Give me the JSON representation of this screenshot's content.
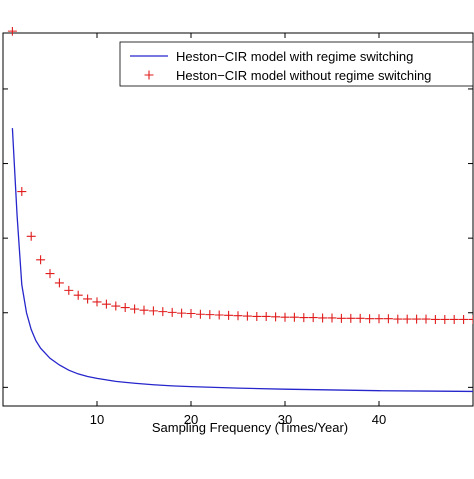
{
  "chart_data": {
    "type": "line",
    "xlabel": "Sampling Frequency (Times/Year)",
    "ylabel": "",
    "xlim": [
      0,
      50
    ],
    "ylim": [
      0,
      1
    ],
    "x_ticks": [
      10,
      20,
      30,
      40
    ],
    "x_tick_labels": [
      "10",
      "20",
      "30",
      "40"
    ],
    "legend_position": "top-right",
    "grid": false,
    "series": [
      {
        "name": "Heston−CIR model with regime switching",
        "style": "line",
        "color": "#2626cc",
        "x": [
          1,
          1.5,
          2,
          2.5,
          3,
          3.5,
          4,
          5,
          6,
          7,
          8,
          9,
          10,
          12,
          14,
          16,
          18,
          20,
          25,
          30,
          35,
          40,
          45,
          50
        ],
        "y": [
          0.745,
          0.51,
          0.325,
          0.25,
          0.205,
          0.175,
          0.155,
          0.128,
          0.11,
          0.096,
          0.086,
          0.079,
          0.074,
          0.066,
          0.061,
          0.057,
          0.054,
          0.052,
          0.048,
          0.045,
          0.043,
          0.041,
          0.04,
          0.039
        ]
      },
      {
        "name": "Heston−CIR model without regime switching",
        "style": "markers",
        "marker": "+",
        "color": "#e01c1c",
        "x": [
          1,
          2,
          3,
          4,
          5,
          6,
          7,
          8,
          9,
          10,
          11,
          12,
          13,
          14,
          15,
          16,
          17,
          18,
          19,
          20,
          21,
          22,
          23,
          24,
          25,
          26,
          27,
          28,
          29,
          30,
          31,
          32,
          33,
          34,
          35,
          36,
          37,
          38,
          39,
          40,
          41,
          42,
          43,
          44,
          45,
          46,
          47,
          48,
          49,
          50
        ],
        "y": [
          1.005,
          0.575,
          0.455,
          0.392,
          0.355,
          0.33,
          0.31,
          0.297,
          0.287,
          0.279,
          0.273,
          0.268,
          0.264,
          0.26,
          0.257,
          0.255,
          0.253,
          0.251,
          0.249,
          0.248,
          0.246,
          0.245,
          0.244,
          0.243,
          0.242,
          0.241,
          0.24,
          0.24,
          0.239,
          0.238,
          0.238,
          0.237,
          0.237,
          0.236,
          0.236,
          0.235,
          0.235,
          0.235,
          0.234,
          0.234,
          0.234,
          0.233,
          0.233,
          0.233,
          0.233,
          0.232,
          0.232,
          0.232,
          0.232,
          0.232
        ]
      }
    ]
  }
}
